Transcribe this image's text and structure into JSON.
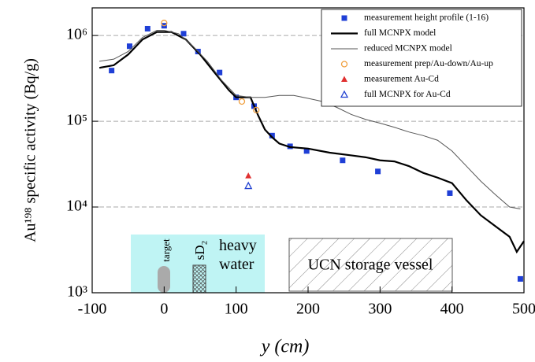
{
  "chart_data": {
    "type": "scatter_line",
    "x_label": "y (cm)",
    "y_label": "Au¹⁹⁸ specific activity (Bq/g)",
    "xlim": [
      -100,
      500
    ],
    "xticks": [
      -100,
      0,
      100,
      200,
      300,
      400,
      500
    ],
    "ylim": [
      1000,
      2100000
    ],
    "yticks": [
      {
        "value": 1000,
        "label": "10³"
      },
      {
        "value": 10000,
        "label": "10⁴"
      },
      {
        "value": 100000,
        "label": "10⁵"
      },
      {
        "value": 1000000,
        "label": "10⁶"
      }
    ],
    "log_y": true,
    "grid": true,
    "legend": "upper right",
    "series": [
      {
        "name": "measurement height profile (1-16)",
        "kind": "marker",
        "marker": "square",
        "color": "#1f3fd6",
        "x": [
          -73,
          -48,
          -23,
          0,
          27,
          47,
          77,
          100,
          125,
          150,
          175,
          198,
          248,
          297,
          397,
          495
        ],
        "values": [
          390000,
          750000,
          1200000,
          1300000,
          1050000,
          650000,
          370000,
          190000,
          150000,
          68000,
          51000,
          45000,
          35000,
          26000,
          14500,
          1450
        ]
      },
      {
        "name": "full MCNPX model",
        "kind": "line",
        "width": 2.2,
        "color": "#000000",
        "x": [
          -90,
          -70,
          -50,
          -30,
          -10,
          0,
          10,
          30,
          50,
          70,
          90,
          100,
          110,
          120,
          130,
          140,
          150,
          160,
          175,
          200,
          230,
          260,
          280,
          300,
          320,
          340,
          360,
          380,
          400,
          420,
          440,
          460,
          480,
          490,
          500
        ],
        "values": [
          420000,
          450000,
          600000,
          900000,
          1100000,
          1100000,
          1100000,
          900000,
          600000,
          370000,
          230000,
          190000,
          190000,
          190000,
          120000,
          80000,
          65000,
          55000,
          50000,
          48000,
          43000,
          40000,
          38000,
          35000,
          34000,
          30000,
          25000,
          22000,
          19000,
          12000,
          8000,
          6000,
          4500,
          3000,
          4000
        ]
      },
      {
        "name": "reduced MCNPX model",
        "kind": "line",
        "width": 1,
        "color": "#555555",
        "x": [
          -90,
          -70,
          -50,
          -30,
          -10,
          0,
          20,
          40,
          60,
          80,
          100,
          120,
          140,
          160,
          180,
          200,
          220,
          240,
          260,
          280,
          300,
          320,
          340,
          360,
          380,
          400,
          420,
          440,
          460,
          480,
          495
        ],
        "values": [
          500000,
          530000,
          650000,
          950000,
          1150000,
          1150000,
          1050000,
          750000,
          500000,
          300000,
          200000,
          190000,
          190000,
          200000,
          200000,
          185000,
          170000,
          145000,
          120000,
          105000,
          95000,
          85000,
          75000,
          68000,
          60000,
          45000,
          30000,
          20000,
          14000,
          10000,
          9500
        ]
      },
      {
        "name": "measurement prep/Au-down/Au-up",
        "kind": "marker",
        "marker": "circle",
        "color": "#f0a040",
        "x": [
          0,
          108,
          128
        ],
        "values": [
          1400000,
          170000,
          135000
        ]
      },
      {
        "name": "measurement Au-Cd",
        "kind": "marker",
        "marker": "triangle",
        "color": "#e03030",
        "x": [
          117
        ],
        "values": [
          23000
        ]
      },
      {
        "name": "full MCNPX for Au-Cd",
        "kind": "marker",
        "marker": "triangle-open",
        "color": "#2040d0",
        "x": [
          117
        ],
        "values": [
          17500
        ]
      }
    ],
    "annotations": [
      "target",
      "sD₂",
      "heavy water",
      "UCN storage vessel"
    ]
  }
}
